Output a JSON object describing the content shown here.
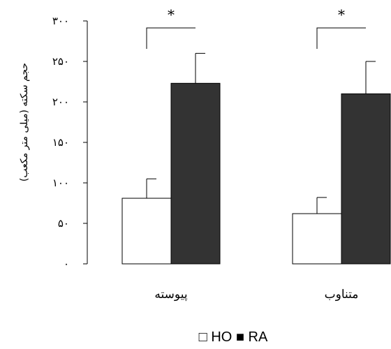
{
  "chart_data": {
    "type": "bar",
    "ylabel": "حجم سکته (میلی متر مکعب)",
    "ylim": [
      0,
      300
    ],
    "yticks": [
      0,
      50,
      100,
      150,
      200,
      250,
      300
    ],
    "ytick_labels": [
      "۰",
      "۵۰",
      "۱۰۰",
      "۱۵۰",
      "۲۰۰",
      "۲۵۰",
      "۳۰۰"
    ],
    "categories": [
      "پیوسته",
      "متناوب"
    ],
    "series": [
      {
        "name": "HO",
        "color": "#ffffff",
        "values": [
          81,
          62
        ],
        "errors": [
          24,
          20
        ]
      },
      {
        "name": "RA",
        "color": "#333333",
        "values": [
          223,
          210
        ],
        "errors": [
          37,
          40
        ]
      }
    ],
    "significance": [
      "*",
      "*"
    ],
    "legend_position": "bottom-center",
    "legend_markers": [
      "□",
      "■"
    ],
    "grid": false
  }
}
